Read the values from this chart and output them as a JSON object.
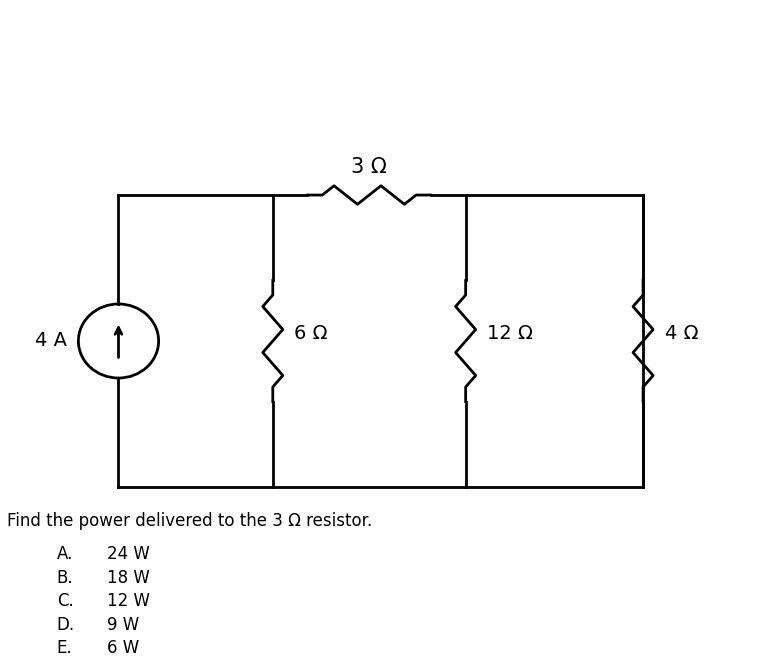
{
  "question_text": "Find the power delivered to the 3 Ω resistor.",
  "current_source_label": "4 A",
  "resistor_labels": [
    "3 Ω",
    "6 Ω",
    "12 Ω",
    "4 Ω"
  ],
  "choice_labels": [
    "A.",
    "B.",
    "C.",
    "D.",
    "E."
  ],
  "choice_values": [
    "24 W",
    "18 W",
    "12 W",
    "9 W",
    "6 W"
  ],
  "bg_color": "#ffffff",
  "line_color": "#000000",
  "lw": 2.0,
  "fig_width": 7.77,
  "fig_height": 6.61
}
